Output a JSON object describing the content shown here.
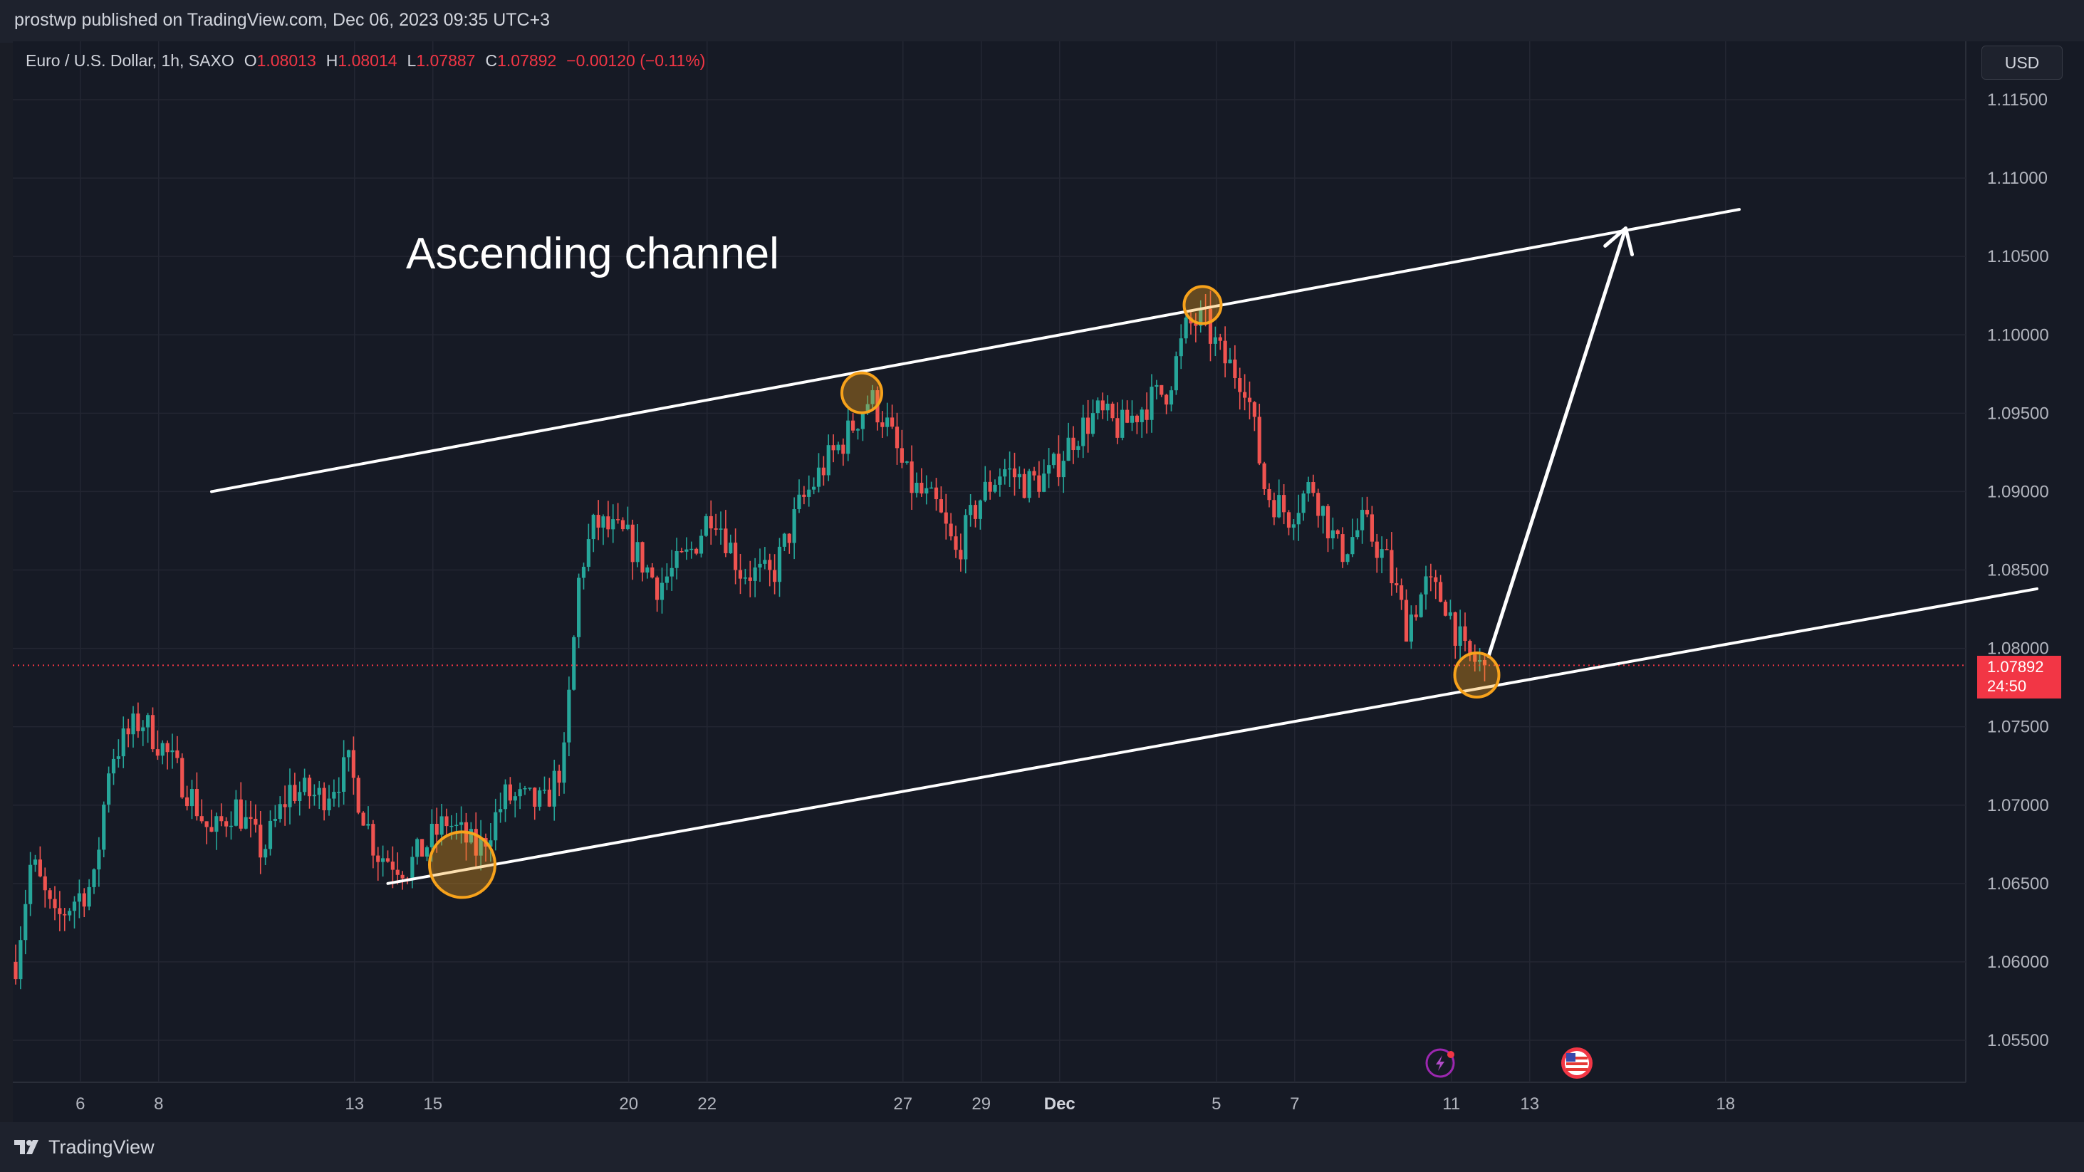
{
  "header": {
    "published_line": "prostwp published on TradingView.com, Dec 06, 2023 09:35 UTC+3"
  },
  "legend": {
    "symbol": "Euro / U.S. Dollar, 1h, SAXO",
    "open_label": "O",
    "open": "1.08013",
    "high_label": "H",
    "high": "1.08014",
    "low_label": "L",
    "low": "1.07887",
    "close_label": "C",
    "close": "1.07892",
    "change": "−0.00120 (−0.11%)"
  },
  "currency_button": "USD",
  "last_price": {
    "price": "1.07892",
    "countdown": "24:50"
  },
  "annotation": {
    "label": "Ascending channel"
  },
  "footer": {
    "brand": "TradingView"
  },
  "colors": {
    "up": "#26a69a",
    "down": "#ef5350",
    "accent_circle": "#f7a21b",
    "price_line": "#f23645",
    "drawing": "#ffffff"
  },
  "icons": [
    "lightning-event-icon",
    "us-flag-event-icon",
    "tradingview-logo-icon"
  ],
  "chart_data": {
    "type": "candlestick",
    "symbol": "EURUSD",
    "interval": "1h",
    "y_axis": {
      "ylim": [
        1.05,
        1.12
      ],
      "ticks": [
        "1.11500",
        "1.11000",
        "1.10500",
        "1.10000",
        "1.09500",
        "1.09000",
        "1.08500",
        "1.08000",
        "1.07500",
        "1.07000",
        "1.06500",
        "1.06000",
        "1.05500"
      ],
      "tick_values": [
        1.115,
        1.11,
        1.105,
        1.1,
        1.095,
        1.09,
        1.085,
        1.08,
        1.075,
        1.07,
        1.065,
        1.06,
        1.055
      ]
    },
    "x_axis": {
      "labels": [
        "6",
        "8",
        "13",
        "15",
        "20",
        "22",
        "27",
        "29",
        "Dec",
        "5",
        "7",
        "11",
        "13",
        "18"
      ],
      "label_days": [
        6,
        8,
        13,
        15,
        20,
        22,
        27,
        29,
        31,
        35,
        37,
        41,
        43,
        48
      ],
      "day_units": "days from Nov 1, trading days only spacing"
    },
    "price_path": [
      {
        "t": 0.0,
        "p": 1.06
      },
      {
        "t": 0.4,
        "p": 1.0665
      },
      {
        "t": 1.0,
        "p": 1.0625
      },
      {
        "t": 1.5,
        "p": 1.064
      },
      {
        "t": 2.0,
        "p": 1.065
      },
      {
        "t": 2.4,
        "p": 1.073
      },
      {
        "t": 3.2,
        "p": 1.0755
      },
      {
        "t": 3.8,
        "p": 1.0735
      },
      {
        "t": 4.5,
        "p": 1.0705
      },
      {
        "t": 5.0,
        "p": 1.068
      },
      {
        "t": 5.6,
        "p": 1.07
      },
      {
        "t": 6.3,
        "p": 1.067
      },
      {
        "t": 7.0,
        "p": 1.071
      },
      {
        "t": 7.8,
        "p": 1.0705
      },
      {
        "t": 8.5,
        "p": 1.0725
      },
      {
        "t": 9.2,
        "p": 1.067
      },
      {
        "t": 10.0,
        "p": 1.066
      },
      {
        "t": 11.0,
        "p": 1.069
      },
      {
        "t": 11.8,
        "p": 1.067
      },
      {
        "t": 12.5,
        "p": 1.0705
      },
      {
        "t": 13.5,
        "p": 1.07
      },
      {
        "t": 14.0,
        "p": 1.073
      },
      {
        "t": 14.4,
        "p": 1.085
      },
      {
        "t": 14.8,
        "p": 1.088
      },
      {
        "t": 15.6,
        "p": 1.087
      },
      {
        "t": 16.4,
        "p": 1.084
      },
      {
        "t": 17.2,
        "p": 1.086
      },
      {
        "t": 17.8,
        "p": 1.089
      },
      {
        "t": 18.5,
        "p": 1.085
      },
      {
        "t": 19.3,
        "p": 1.0845
      },
      {
        "t": 20.0,
        "p": 1.089
      },
      {
        "t": 20.6,
        "p": 1.0915
      },
      {
        "t": 21.2,
        "p": 1.0935
      },
      {
        "t": 21.8,
        "p": 1.096
      },
      {
        "t": 22.2,
        "p": 1.0945
      },
      {
        "t": 22.8,
        "p": 1.0905
      },
      {
        "t": 23.5,
        "p": 1.089
      },
      {
        "t": 24.0,
        "p": 1.086
      },
      {
        "t": 24.6,
        "p": 1.0895
      },
      {
        "t": 25.2,
        "p": 1.0915
      },
      {
        "t": 25.8,
        "p": 1.0905
      },
      {
        "t": 26.4,
        "p": 1.091
      },
      {
        "t": 27.0,
        "p": 1.0935
      },
      {
        "t": 27.6,
        "p": 1.095
      },
      {
        "t": 28.2,
        "p": 1.094
      },
      {
        "t": 28.8,
        "p": 1.0955
      },
      {
        "t": 29.4,
        "p": 1.0965
      },
      {
        "t": 29.9,
        "p": 1.1005
      },
      {
        "t": 30.3,
        "p": 1.101
      },
      {
        "t": 30.8,
        "p": 1.0985
      },
      {
        "t": 31.4,
        "p": 1.097
      },
      {
        "t": 31.9,
        "p": 1.09
      },
      {
        "t": 32.5,
        "p": 1.0885
      },
      {
        "t": 33.1,
        "p": 1.0905
      },
      {
        "t": 33.8,
        "p": 1.086
      },
      {
        "t": 34.4,
        "p": 1.088
      },
      {
        "t": 35.0,
        "p": 1.0855
      },
      {
        "t": 35.5,
        "p": 1.0815
      },
      {
        "t": 36.0,
        "p": 1.084
      },
      {
        "t": 36.5,
        "p": 1.083
      },
      {
        "t": 37.0,
        "p": 1.0795
      },
      {
        "t": 37.5,
        "p": 1.0789
      }
    ],
    "drawings": [
      {
        "name": "upper-channel-line",
        "type": "trendline",
        "from": {
          "t": 5.0,
          "p": 1.09
        },
        "to": {
          "t": 44.0,
          "p": 1.108
        }
      },
      {
        "name": "lower-channel-line",
        "type": "trendline",
        "from": {
          "t": 9.5,
          "p": 1.065
        },
        "to": {
          "t": 51.6,
          "p": 1.0838
        }
      },
      {
        "name": "target-arrow",
        "type": "arrow",
        "from": {
          "t": 37.6,
          "p": 1.0795
        },
        "to": {
          "t": 41.1,
          "p": 1.1068
        }
      }
    ],
    "touch_points": [
      {
        "t": 11.4,
        "p": 1.0662
      },
      {
        "t": 21.6,
        "p": 1.0963
      },
      {
        "t": 30.3,
        "p": 1.1019
      },
      {
        "t": 37.3,
        "p": 1.0783
      }
    ],
    "last_price_line": 1.07892,
    "grid": true,
    "legend_position": "top-left"
  }
}
